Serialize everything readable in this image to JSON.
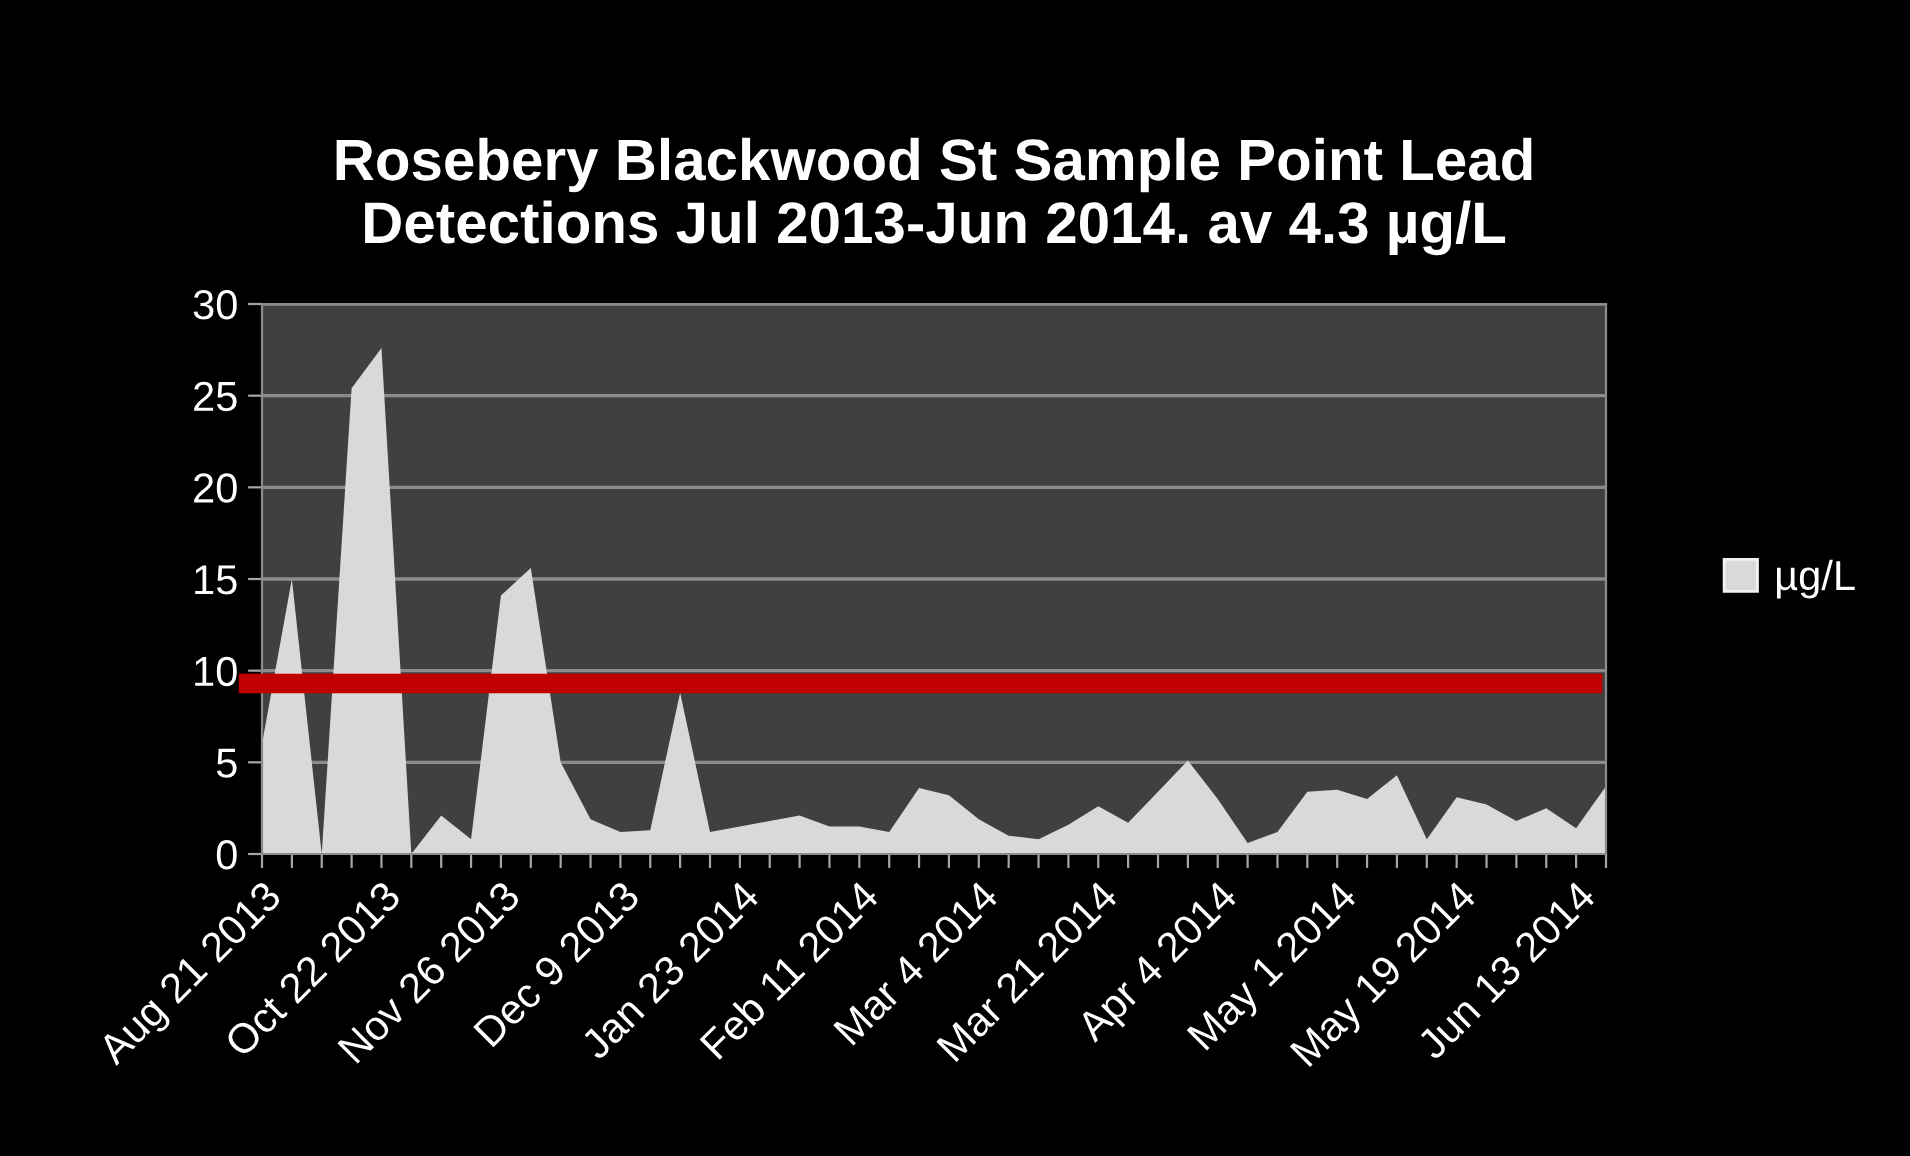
{
  "chart_data": {
    "type": "area",
    "title": "Rosebery Blackwood St Sample Point Lead\nDetections Jul 2013-Jun 2014. av 4.3 µg/L",
    "categories": [
      "Aug 21 2013",
      null,
      null,
      null,
      "Oct 22 2013",
      null,
      null,
      null,
      "Nov 26 2013",
      null,
      null,
      null,
      "Dec 9 2013",
      null,
      null,
      null,
      "Jan 23 2014",
      null,
      null,
      null,
      "Feb 11 2014",
      null,
      null,
      null,
      "Mar 4 2014",
      null,
      null,
      null,
      "Mar 21 2014",
      null,
      null,
      null,
      "Apr 4 2014",
      null,
      null,
      null,
      "May 1 2014",
      null,
      null,
      null,
      "May 19 2014",
      null,
      null,
      null,
      "Jun 13 2014",
      null
    ],
    "series": [
      {
        "name": "µg/L",
        "color": "#d9d9d9",
        "values": [
          6,
          15,
          0,
          25.4,
          27.6,
          0,
          2.1,
          0.8,
          14.1,
          15.6,
          5.0,
          1.9,
          1.2,
          1.3,
          8.8,
          1.2,
          1.5,
          1.8,
          2.1,
          1.5,
          1.5,
          1.2,
          3.6,
          3.2,
          1.9,
          1.0,
          0.8,
          1.6,
          2.6,
          1.7,
          3.4,
          5.1,
          3.0,
          0.6,
          1.2,
          3.4,
          3.5,
          3.0,
          4.3,
          0.8,
          3.1,
          2.7,
          1.8,
          2.5,
          1.4,
          3.7
        ]
      }
    ],
    "ylim": [
      0,
      30
    ],
    "yticks": [
      0,
      5,
      10,
      15,
      20,
      25,
      30
    ],
    "ref_lines": [
      {
        "axis": "y",
        "value": 9.3,
        "color": "#c00000"
      }
    ],
    "grid": "y",
    "legend": "right"
  }
}
